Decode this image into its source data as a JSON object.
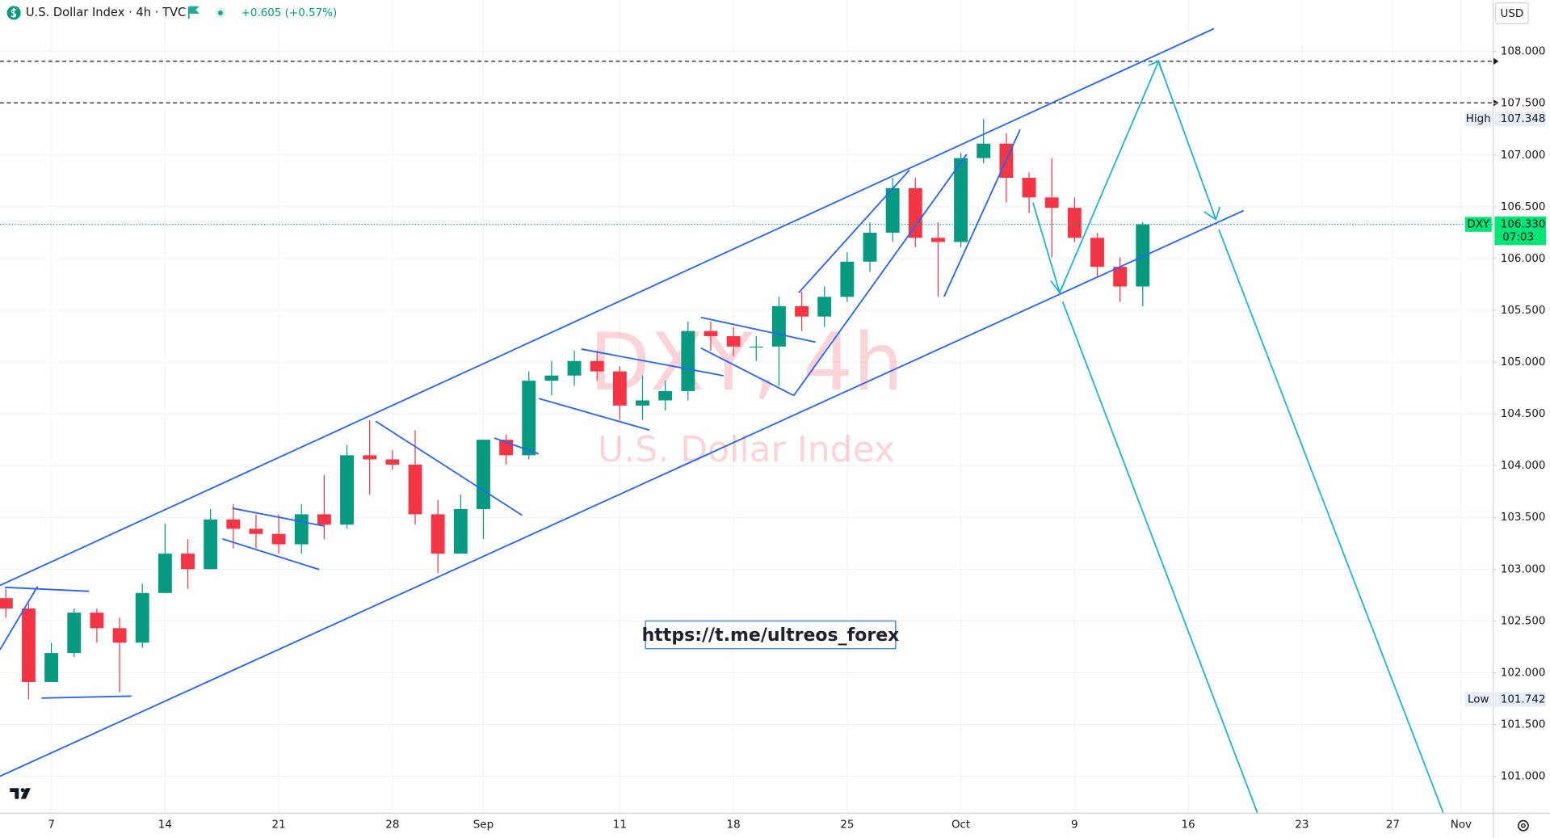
{
  "chart_data": {
    "type": "candlestick",
    "title": "U.S. Dollar Index · 4h · TVC",
    "change": "+0.605 (+0.57%)",
    "watermark": "DXY, 4h",
    "watermark_subtitle": "U.S. Dollar Index",
    "currency": "USD",
    "symbol": "DXY",
    "countdown": "07:03",
    "annotation": "https://t.me/ultreos_forex",
    "last_price": {
      "value": 106.33,
      "label": "106.330"
    },
    "high_marker_label": "High",
    "high_marker": {
      "value": 107.348,
      "label": "107.348"
    },
    "low_marker_label": "Low",
    "low_marker": {
      "value": 101.742,
      "label": "101.742"
    },
    "up_color": "#089981",
    "down_color": "#f23645",
    "x": [
      -2,
      -1,
      0,
      1,
      2,
      3,
      4,
      5,
      6,
      7,
      8,
      9,
      10,
      11,
      12,
      13,
      14,
      15,
      16,
      17,
      18,
      19,
      20,
      21,
      22,
      23,
      24,
      25,
      26,
      27,
      28,
      29,
      30,
      31,
      32,
      33,
      34,
      35,
      36,
      37,
      38,
      39,
      40,
      41,
      42,
      43,
      44,
      45,
      46,
      47,
      48
    ],
    "open": [
      102.72,
      102.62,
      101.91,
      102.19,
      102.58,
      102.43,
      102.29,
      102.77,
      103.15,
      103.0,
      103.48,
      103.39,
      103.34,
      103.24,
      103.53,
      103.43,
      104.1,
      104.06,
      104.01,
      103.53,
      103.15,
      103.58,
      104.25,
      104.1,
      104.82,
      104.87,
      105.01,
      104.91,
      104.58,
      104.63,
      104.72,
      105.3,
      105.25,
      105.15,
      105.15,
      105.54,
      105.44,
      105.63,
      105.97,
      106.25,
      106.68,
      106.2,
      106.16,
      106.97,
      107.11,
      106.78,
      106.59,
      106.49,
      106.2,
      105.92,
      105.73
    ],
    "high": [
      102.81,
      102.67,
      102.29,
      102.62,
      102.62,
      102.53,
      102.86,
      103.44,
      103.29,
      103.58,
      103.63,
      103.53,
      103.53,
      103.63,
      103.91,
      104.2,
      104.44,
      104.15,
      104.34,
      103.67,
      103.72,
      104.25,
      104.3,
      104.91,
      105.01,
      105.11,
      105.11,
      104.96,
      104.87,
      104.82,
      105.39,
      105.39,
      105.34,
      105.25,
      105.63,
      105.68,
      105.73,
      106.06,
      106.35,
      106.78,
      106.78,
      106.35,
      107.02,
      107.348,
      107.21,
      106.83,
      106.97,
      106.59,
      106.25,
      106.01,
      106.35
    ],
    "low": [
      102.53,
      101.742,
      101.91,
      102.15,
      102.29,
      101.81,
      102.24,
      102.77,
      102.81,
      103.0,
      103.2,
      103.2,
      103.15,
      103.15,
      103.29,
      103.39,
      103.72,
      103.96,
      103.43,
      102.96,
      103.15,
      103.29,
      104.01,
      104.06,
      104.68,
      104.77,
      104.82,
      104.44,
      104.44,
      104.53,
      104.63,
      105.11,
      105.06,
      105.01,
      104.77,
      105.3,
      105.34,
      105.58,
      105.87,
      106.16,
      106.11,
      105.63,
      106.11,
      106.92,
      106.54,
      106.44,
      106.01,
      106.16,
      105.82,
      105.58,
      105.54
    ],
    "close": [
      102.62,
      101.91,
      102.19,
      102.58,
      102.43,
      102.29,
      102.77,
      103.15,
      103.0,
      103.48,
      103.39,
      103.34,
      103.24,
      103.53,
      103.43,
      104.1,
      104.06,
      104.01,
      103.53,
      103.15,
      103.58,
      104.25,
      104.1,
      104.82,
      104.87,
      105.01,
      104.91,
      104.58,
      104.63,
      104.72,
      105.3,
      105.25,
      105.15,
      105.15,
      105.54,
      105.44,
      105.63,
      105.97,
      106.25,
      106.68,
      106.2,
      106.16,
      106.97,
      107.11,
      106.78,
      106.59,
      106.49,
      106.2,
      105.92,
      105.73,
      106.33
    ],
    "xlim": [
      -2.26,
      63.39
    ],
    "ylim": [
      100.647,
      108.497
    ],
    "xticks": [
      {
        "value": 0,
        "label": "7"
      },
      {
        "value": 5,
        "label": "14"
      },
      {
        "value": 10,
        "label": "21"
      },
      {
        "value": 15,
        "label": "28"
      },
      {
        "value": 19,
        "label": "Sep"
      },
      {
        "value": 25,
        "label": "11"
      },
      {
        "value": 30,
        "label": "18"
      },
      {
        "value": 35,
        "label": "25"
      },
      {
        "value": 40,
        "label": "Oct"
      },
      {
        "value": 45,
        "label": "9"
      },
      {
        "value": 50,
        "label": "16"
      },
      {
        "value": 55,
        "label": "23"
      },
      {
        "value": 59,
        "label": "27"
      },
      {
        "value": 62,
        "label": "Nov"
      }
    ],
    "yticks": [
      {
        "value": 101,
        "label": "101.000"
      },
      {
        "value": 101.5,
        "label": "101.500"
      },
      {
        "value": 102,
        "label": "102.000"
      },
      {
        "value": 102.5,
        "label": "102.500"
      },
      {
        "value": 103,
        "label": "103.000"
      },
      {
        "value": 103.5,
        "label": "103.500"
      },
      {
        "value": 104,
        "label": "104.000"
      },
      {
        "value": 104.5,
        "label": "104.500"
      },
      {
        "value": 105,
        "label": "105.000"
      },
      {
        "value": 105.5,
        "label": "105.500"
      },
      {
        "value": 106,
        "label": "106.000"
      },
      {
        "value": 106.5,
        "label": "106.500"
      },
      {
        "value": 107,
        "label": "107.000"
      },
      {
        "value": 107.5,
        "label": "107.500"
      },
      {
        "value": 108,
        "label": "108.000"
      }
    ],
    "grid": true
  }
}
